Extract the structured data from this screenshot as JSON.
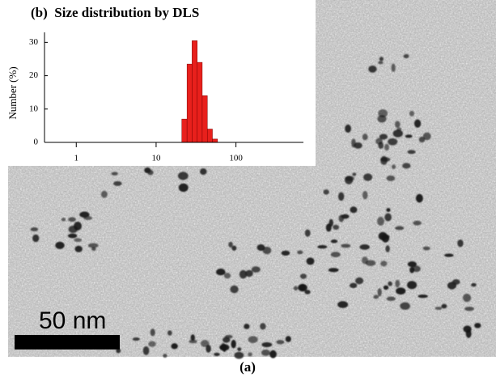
{
  "figure": {
    "scale_bar": "50 nm",
    "caption": "(a)"
  },
  "chart_data": {
    "type": "histogram",
    "title": "(b)  Size distribution by DLS",
    "ylabel": "Number (%)",
    "bins": [
      21.0,
      24.4,
      28.2,
      32.7,
      37.8,
      43.8,
      50.7,
      58.8
    ],
    "values": [
      7,
      23.5,
      30.5,
      24,
      14,
      4,
      1
    ],
    "color": "#e8201c",
    "log_x": true,
    "xlim": [
      0.4,
      700
    ],
    "xticks": [
      1,
      10,
      100
    ],
    "ylim": [
      0,
      33
    ],
    "yticks": [
      0,
      10,
      20,
      30
    ]
  }
}
